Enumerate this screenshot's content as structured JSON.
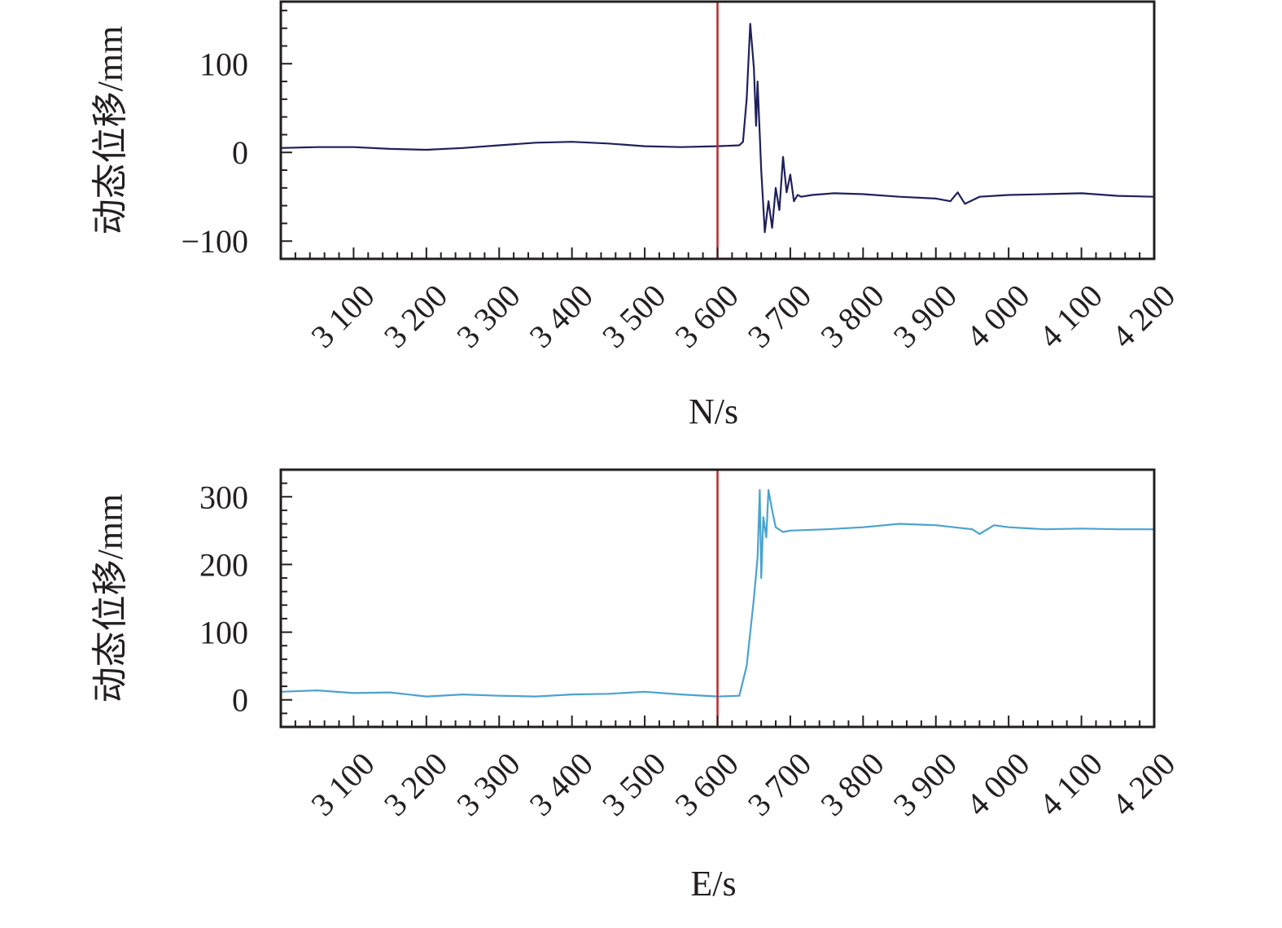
{
  "chart_data": [
    {
      "type": "line",
      "xlabel": "N/s",
      "ylabel": "动态位移/mm",
      "xlim": [
        3000,
        4200
      ],
      "ylim": [
        -120,
        170
      ],
      "x_ticks": [
        3100,
        3200,
        3300,
        3400,
        3500,
        3600,
        3700,
        3800,
        3900,
        4000,
        4100,
        4200
      ],
      "x_tick_labels": [
        "3 100",
        "3 200",
        "3 300",
        "3 400",
        "3 500",
        "3 600",
        "3 700",
        "3 800",
        "3 900",
        "4 000",
        "4 100",
        "4 200"
      ],
      "y_ticks": [
        -100,
        0,
        100
      ],
      "y_tick_labels": [
        "−100",
        "0",
        "100"
      ],
      "marker_line_x": 3600,
      "grid": false,
      "series": [
        {
          "color": "#1f1f5c",
          "points": [
            [
              3000,
              5
            ],
            [
              3050,
              6
            ],
            [
              3100,
              6
            ],
            [
              3150,
              4
            ],
            [
              3200,
              3
            ],
            [
              3250,
              5
            ],
            [
              3300,
              8
            ],
            [
              3350,
              11
            ],
            [
              3400,
              12
            ],
            [
              3450,
              10
            ],
            [
              3500,
              7
            ],
            [
              3550,
              6
            ],
            [
              3600,
              7
            ],
            [
              3630,
              8
            ],
            [
              3635,
              12
            ],
            [
              3640,
              60
            ],
            [
              3645,
              145
            ],
            [
              3650,
              95
            ],
            [
              3653,
              30
            ],
            [
              3655,
              80
            ],
            [
              3660,
              -20
            ],
            [
              3665,
              -90
            ],
            [
              3670,
              -55
            ],
            [
              3675,
              -85
            ],
            [
              3680,
              -40
            ],
            [
              3685,
              -65
            ],
            [
              3690,
              -5
            ],
            [
              3695,
              -45
            ],
            [
              3700,
              -25
            ],
            [
              3705,
              -55
            ],
            [
              3710,
              -48
            ],
            [
              3715,
              -50
            ],
            [
              3730,
              -48
            ],
            [
              3760,
              -46
            ],
            [
              3800,
              -47
            ],
            [
              3850,
              -50
            ],
            [
              3900,
              -52
            ],
            [
              3920,
              -55
            ],
            [
              3930,
              -45
            ],
            [
              3940,
              -58
            ],
            [
              3960,
              -50
            ],
            [
              4000,
              -48
            ],
            [
              4050,
              -47
            ],
            [
              4100,
              -46
            ],
            [
              4150,
              -49
            ],
            [
              4200,
              -50
            ]
          ]
        }
      ]
    },
    {
      "type": "line",
      "xlabel": "E/s",
      "ylabel": "动态位移/mm",
      "xlim": [
        3000,
        4200
      ],
      "ylim": [
        -40,
        340
      ],
      "x_ticks": [
        3100,
        3200,
        3300,
        3400,
        3500,
        3600,
        3700,
        3800,
        3900,
        4000,
        4100,
        4200
      ],
      "x_tick_labels": [
        "3 100",
        "3 200",
        "3 300",
        "3 400",
        "3 500",
        "3 600",
        "3 700",
        "3 800",
        "3 900",
        "4 000",
        "4 100",
        "4 200"
      ],
      "y_ticks": [
        0,
        100,
        200,
        300
      ],
      "y_tick_labels": [
        "0",
        "100",
        "200",
        "300"
      ],
      "marker_line_x": 3600,
      "grid": false,
      "series": [
        {
          "color": "#4aa3cf",
          "points": [
            [
              3000,
              12
            ],
            [
              3050,
              14
            ],
            [
              3100,
              10
            ],
            [
              3150,
              11
            ],
            [
              3200,
              5
            ],
            [
              3250,
              8
            ],
            [
              3300,
              6
            ],
            [
              3350,
              5
            ],
            [
              3400,
              8
            ],
            [
              3450,
              9
            ],
            [
              3500,
              12
            ],
            [
              3550,
              8
            ],
            [
              3600,
              5
            ],
            [
              3630,
              6
            ],
            [
              3640,
              50
            ],
            [
              3650,
              150
            ],
            [
              3655,
              210
            ],
            [
              3658,
              310
            ],
            [
              3660,
              180
            ],
            [
              3663,
              270
            ],
            [
              3667,
              240
            ],
            [
              3670,
              310
            ],
            [
              3675,
              280
            ],
            [
              3680,
              255
            ],
            [
              3690,
              248
            ],
            [
              3700,
              250
            ],
            [
              3750,
              252
            ],
            [
              3800,
              255
            ],
            [
              3850,
              260
            ],
            [
              3900,
              258
            ],
            [
              3950,
              252
            ],
            [
              3960,
              245
            ],
            [
              3980,
              258
            ],
            [
              4000,
              255
            ],
            [
              4050,
              252
            ],
            [
              4100,
              253
            ],
            [
              4150,
              252
            ],
            [
              4200,
              252
            ]
          ]
        }
      ]
    }
  ]
}
